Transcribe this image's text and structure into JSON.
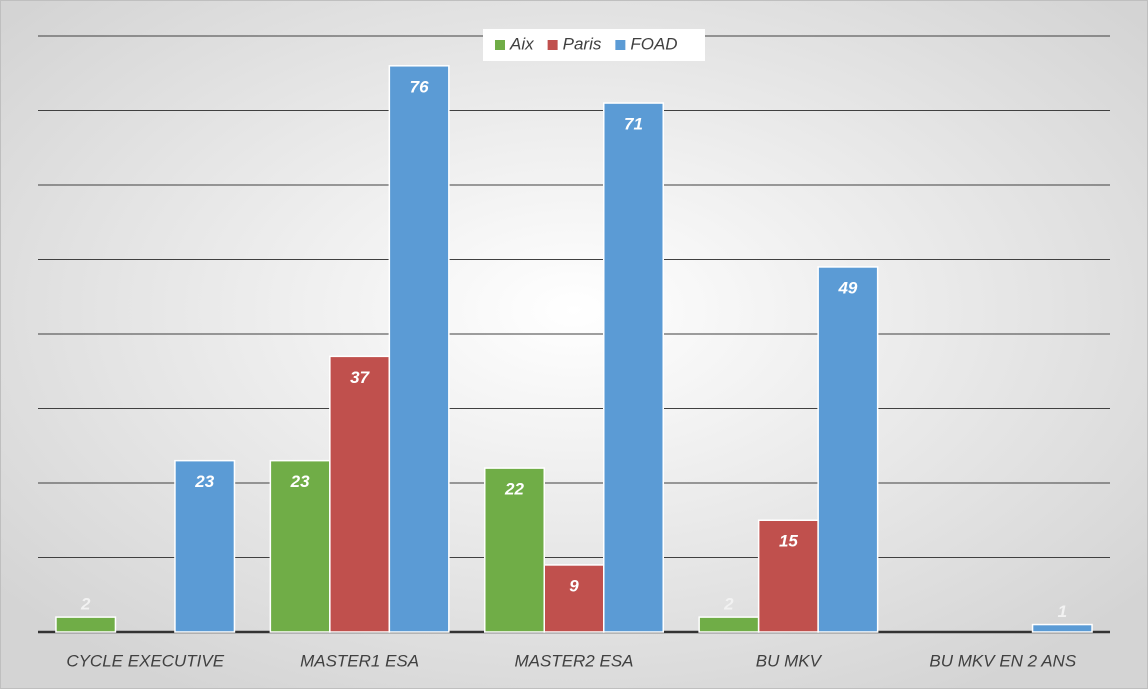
{
  "chart_data": {
    "type": "bar",
    "categories": [
      "CYCLE EXECUTIVE",
      "MASTER1 ESA",
      "MASTER2 ESA",
      "BU MKV",
      "BU MKV EN 2 ANS"
    ],
    "series": [
      {
        "name": "Aix",
        "color": "#70ad47",
        "values": [
          2,
          23,
          22,
          2,
          null
        ]
      },
      {
        "name": "Paris",
        "color": "#c0504d",
        "values": [
          null,
          37,
          9,
          15,
          null
        ]
      },
      {
        "name": "FOAD",
        "color": "#5b9bd5",
        "values": [
          23,
          76,
          71,
          49,
          1
        ]
      }
    ],
    "ylim": [
      0,
      80
    ],
    "yticks": [
      0,
      10,
      20,
      30,
      40,
      50,
      60,
      70,
      80
    ],
    "grid": true,
    "legend": "top"
  }
}
